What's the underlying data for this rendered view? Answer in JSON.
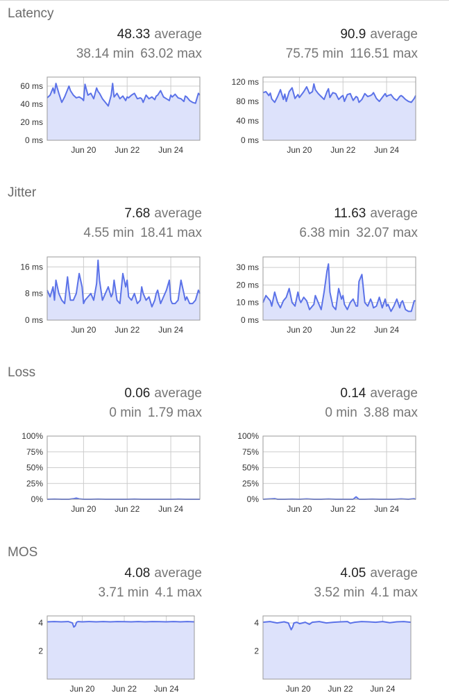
{
  "sections": [
    {
      "title": "Latency",
      "panels": [
        {
          "avg": "48.33",
          "avg_word": "average",
          "min": "38.14 min",
          "max": "63.02 max"
        },
        {
          "avg": "90.9",
          "avg_word": "average",
          "min": "75.75 min",
          "max": "116.51 max"
        }
      ]
    },
    {
      "title": "Jitter",
      "panels": [
        {
          "avg": "7.68",
          "avg_word": "average",
          "min": "4.55 min",
          "max": "18.41 max"
        },
        {
          "avg": "11.63",
          "avg_word": "average",
          "min": "6.38 min",
          "max": "32.07 max"
        }
      ]
    },
    {
      "title": "Loss",
      "panels": [
        {
          "avg": "0.06",
          "avg_word": "average",
          "min": "0 min",
          "max": "1.79 max"
        },
        {
          "avg": "0.14",
          "avg_word": "average",
          "min": "0 min",
          "max": "3.88 max"
        }
      ]
    },
    {
      "title": "MOS",
      "panels": [
        {
          "avg": "4.08",
          "avg_word": "average",
          "min": "3.71 min",
          "max": "4.1 max"
        },
        {
          "avg": "4.05",
          "avg_word": "average",
          "min": "3.52 min",
          "max": "4.1 max"
        }
      ]
    }
  ],
  "chart_data": [
    {
      "type": "area",
      "section": "Latency",
      "panel": "left",
      "x_range": [
        0,
        105
      ],
      "xticks": [
        {
          "x": 25,
          "label": "Jun 20"
        },
        {
          "x": 55,
          "label": "Jun 22"
        },
        {
          "x": 85,
          "label": "Jun 24"
        }
      ],
      "ylim": [
        0,
        70
      ],
      "yticks": [
        {
          "v": 0,
          "label": "0 ms"
        },
        {
          "v": 20,
          "label": "20 ms"
        },
        {
          "v": 40,
          "label": "40 ms"
        },
        {
          "v": 60,
          "label": "60 ms"
        }
      ],
      "color": "#5b72e8",
      "fill": "#dde2fb",
      "x": [
        0,
        2,
        4,
        5,
        6,
        8,
        10,
        12,
        14,
        15,
        16,
        18,
        20,
        22,
        24,
        25,
        26,
        28,
        30,
        32,
        34,
        35,
        36,
        38,
        40,
        42,
        44,
        45,
        46,
        48,
        50,
        52,
        54,
        55,
        56,
        58,
        60,
        62,
        64,
        65,
        66,
        68,
        70,
        72,
        74,
        75,
        76,
        78,
        80,
        82,
        84,
        85,
        86,
        88,
        90,
        92,
        94,
        95,
        96,
        98,
        100,
        102,
        104,
        105
      ],
      "values": [
        47,
        50,
        58,
        52,
        63,
        52,
        42,
        48,
        56,
        60,
        55,
        50,
        47,
        48,
        46,
        44,
        62,
        50,
        52,
        46,
        58,
        54,
        52,
        46,
        42,
        38,
        50,
        63,
        48,
        52,
        46,
        49,
        44,
        48,
        47,
        50,
        52,
        46,
        47,
        46,
        42,
        50,
        46,
        48,
        45,
        49,
        50,
        55,
        48,
        46,
        44,
        50,
        48,
        51,
        47,
        46,
        43,
        49,
        48,
        44,
        42,
        41,
        52,
        50
      ]
    },
    {
      "type": "area",
      "section": "Latency",
      "panel": "right",
      "x_range": [
        0,
        105
      ],
      "xticks": [
        {
          "x": 25,
          "label": "Jun 20"
        },
        {
          "x": 55,
          "label": "Jun 22"
        },
        {
          "x": 85,
          "label": "Jun 24"
        }
      ],
      "ylim": [
        0,
        130
      ],
      "yticks": [
        {
          "v": 0,
          "label": "0 ms"
        },
        {
          "v": 40,
          "label": "40 ms"
        },
        {
          "v": 80,
          "label": "80 ms"
        },
        {
          "v": 120,
          "label": "120 ms"
        }
      ],
      "color": "#5b72e8",
      "fill": "#dde2fb",
      "x": [
        0,
        2,
        4,
        5,
        6,
        8,
        10,
        12,
        14,
        15,
        16,
        18,
        20,
        22,
        24,
        25,
        26,
        28,
        30,
        32,
        34,
        35,
        36,
        38,
        40,
        42,
        44,
        45,
        46,
        48,
        50,
        52,
        54,
        55,
        56,
        58,
        60,
        62,
        64,
        65,
        66,
        68,
        70,
        72,
        74,
        75,
        76,
        78,
        80,
        82,
        84,
        85,
        86,
        88,
        90,
        92,
        94,
        95,
        96,
        98,
        100,
        102,
        104,
        105
      ],
      "values": [
        98,
        100,
        92,
        97,
        85,
        78,
        90,
        104,
        84,
        95,
        80,
        100,
        108,
        86,
        94,
        88,
        92,
        100,
        110,
        96,
        100,
        116,
        104,
        96,
        90,
        84,
        100,
        106,
        88,
        98,
        96,
        84,
        90,
        92,
        80,
        94,
        96,
        82,
        90,
        88,
        78,
        84,
        96,
        90,
        92,
        94,
        98,
        86,
        80,
        88,
        96,
        90,
        92,
        94,
        86,
        82,
        90,
        92,
        90,
        84,
        80,
        78,
        86,
        92
      ]
    },
    {
      "type": "area",
      "section": "Jitter",
      "panel": "left",
      "x_range": [
        0,
        105
      ],
      "xticks": [
        {
          "x": 25,
          "label": "Jun 20"
        },
        {
          "x": 55,
          "label": "Jun 22"
        },
        {
          "x": 85,
          "label": "Jun 24"
        }
      ],
      "ylim": [
        0,
        19
      ],
      "yticks": [
        {
          "v": 0,
          "label": "0 ms"
        },
        {
          "v": 8,
          "label": "8 ms"
        },
        {
          "v": 16,
          "label": "16 ms"
        }
      ],
      "color": "#5b72e8",
      "fill": "#dde2fb",
      "x": [
        0,
        2,
        4,
        5,
        6,
        8,
        10,
        12,
        14,
        15,
        16,
        18,
        20,
        22,
        24,
        25,
        26,
        28,
        30,
        32,
        34,
        35,
        36,
        38,
        40,
        42,
        44,
        45,
        46,
        48,
        50,
        52,
        54,
        55,
        56,
        58,
        60,
        62,
        64,
        65,
        66,
        68,
        70,
        72,
        74,
        75,
        76,
        78,
        80,
        82,
        84,
        85,
        86,
        88,
        90,
        92,
        94,
        95,
        96,
        98,
        100,
        102,
        104,
        105
      ],
      "values": [
        9,
        7,
        10,
        6,
        12,
        8,
        6,
        5,
        13,
        9,
        6,
        6,
        8,
        14,
        10,
        5,
        6,
        7,
        8,
        6,
        11,
        18,
        12,
        6,
        8,
        10,
        7,
        8,
        12,
        6,
        5,
        14,
        10,
        12,
        7,
        6,
        8,
        5,
        6,
        10,
        8,
        6,
        7,
        4,
        6,
        8,
        9,
        5,
        7,
        9,
        12,
        6,
        5,
        5,
        6,
        12,
        8,
        6,
        7,
        5,
        5,
        6,
        9,
        8
      ]
    },
    {
      "type": "area",
      "section": "Jitter",
      "panel": "right",
      "x_range": [
        0,
        105
      ],
      "xticks": [
        {
          "x": 25,
          "label": "Jun 20"
        },
        {
          "x": 55,
          "label": "Jun 22"
        },
        {
          "x": 85,
          "label": "Jun 24"
        }
      ],
      "ylim": [
        0,
        36
      ],
      "yticks": [
        {
          "v": 0,
          "label": "0 ms"
        },
        {
          "v": 10,
          "label": "10 ms"
        },
        {
          "v": 20,
          "label": "20 ms"
        },
        {
          "v": 30,
          "label": "30 ms"
        }
      ],
      "color": "#5b72e8",
      "fill": "#dde2fb",
      "x": [
        0,
        2,
        4,
        5,
        6,
        8,
        10,
        12,
        14,
        15,
        16,
        18,
        20,
        22,
        24,
        25,
        26,
        28,
        30,
        32,
        34,
        35,
        36,
        38,
        40,
        42,
        44,
        45,
        46,
        48,
        50,
        52,
        54,
        55,
        56,
        58,
        60,
        62,
        64,
        65,
        66,
        68,
        70,
        72,
        74,
        75,
        76,
        78,
        80,
        82,
        84,
        85,
        86,
        88,
        90,
        92,
        94,
        95,
        96,
        98,
        100,
        102,
        104,
        105
      ],
      "values": [
        10,
        14,
        12,
        11,
        8,
        16,
        10,
        7,
        11,
        12,
        13,
        18,
        10,
        8,
        16,
        12,
        10,
        13,
        11,
        6,
        8,
        9,
        14,
        10,
        6,
        16,
        28,
        32,
        16,
        8,
        6,
        18,
        12,
        14,
        9,
        6,
        10,
        12,
        8,
        8,
        22,
        26,
        10,
        8,
        12,
        10,
        7,
        8,
        13,
        7,
        12,
        8,
        9,
        5,
        8,
        12,
        7,
        10,
        11,
        6,
        5,
        5,
        11,
        11
      ]
    },
    {
      "type": "area",
      "section": "Loss",
      "panel": "left",
      "x_range": [
        0,
        105
      ],
      "xticks": [
        {
          "x": 25,
          "label": "Jun 20"
        },
        {
          "x": 55,
          "label": "Jun 22"
        },
        {
          "x": 85,
          "label": "Jun 24"
        }
      ],
      "ylim": [
        0,
        100
      ],
      "yticks": [
        {
          "v": 0,
          "label": "0%"
        },
        {
          "v": 25,
          "label": "25%"
        },
        {
          "v": 50,
          "label": "50%"
        },
        {
          "v": 75,
          "label": "75%"
        },
        {
          "v": 100,
          "label": "100%"
        }
      ],
      "color": "#5b72e8",
      "fill": "#dde2fb",
      "x": [
        0,
        5,
        10,
        15,
        18,
        20,
        22,
        25,
        30,
        35,
        40,
        45,
        50,
        55,
        60,
        65,
        70,
        75,
        80,
        85,
        90,
        95,
        100,
        105
      ],
      "values": [
        0,
        0.3,
        0,
        0,
        0.8,
        1.79,
        0.5,
        0,
        0,
        0.2,
        0,
        0,
        0,
        0,
        0.3,
        0,
        0,
        0,
        0,
        0,
        0.2,
        0,
        0,
        0
      ]
    },
    {
      "type": "area",
      "section": "Loss",
      "panel": "right",
      "x_range": [
        0,
        105
      ],
      "xticks": [
        {
          "x": 25,
          "label": "Jun 20"
        },
        {
          "x": 55,
          "label": "Jun 22"
        },
        {
          "x": 85,
          "label": "Jun 24"
        }
      ],
      "ylim": [
        0,
        100
      ],
      "yticks": [
        {
          "v": 0,
          "label": "0%"
        },
        {
          "v": 25,
          "label": "25%"
        },
        {
          "v": 50,
          "label": "50%"
        },
        {
          "v": 75,
          "label": "75%"
        },
        {
          "v": 100,
          "label": "100%"
        }
      ],
      "color": "#5b72e8",
      "fill": "#dde2fb",
      "x": [
        0,
        5,
        8,
        10,
        15,
        20,
        25,
        30,
        35,
        40,
        45,
        50,
        55,
        60,
        62,
        64,
        66,
        70,
        75,
        80,
        85,
        90,
        95,
        100,
        104,
        105
      ],
      "values": [
        0,
        0.5,
        1,
        0,
        0,
        0.3,
        0,
        0.6,
        0,
        0,
        0.4,
        0,
        0,
        0,
        0,
        3.88,
        0,
        0,
        0.3,
        0,
        0,
        0,
        0.5,
        0,
        0.8,
        0
      ]
    },
    {
      "type": "area",
      "section": "MOS",
      "panel": "left",
      "x_range": [
        0,
        105
      ],
      "xticks": [
        {
          "x": 25,
          "label": "Jun 20"
        },
        {
          "x": 55,
          "label": "Jun 22"
        },
        {
          "x": 85,
          "label": "Jun 24"
        }
      ],
      "ylim": [
        0,
        4.5
      ],
      "yticks": [
        {
          "v": 2,
          "label": "2"
        },
        {
          "v": 4,
          "label": "4"
        }
      ],
      "color": "#5b72e8",
      "fill": "#dde2fb",
      "x": [
        0,
        5,
        10,
        15,
        18,
        19,
        20,
        21,
        22,
        25,
        30,
        35,
        40,
        45,
        50,
        55,
        60,
        65,
        70,
        75,
        80,
        85,
        90,
        95,
        100,
        105
      ],
      "values": [
        4.08,
        4.1,
        4.08,
        4.1,
        4.0,
        3.71,
        3.8,
        4.05,
        4.1,
        4.08,
        4.1,
        4.08,
        4.1,
        4.08,
        4.1,
        4.09,
        4.08,
        4.1,
        4.08,
        4.1,
        4.09,
        4.08,
        4.1,
        4.08,
        4.1,
        4.08
      ]
    },
    {
      "type": "area",
      "section": "MOS",
      "panel": "right",
      "x_range": [
        0,
        105
      ],
      "xticks": [
        {
          "x": 25,
          "label": "Jun 20"
        },
        {
          "x": 55,
          "label": "Jun 22"
        },
        {
          "x": 85,
          "label": "Jun 24"
        }
      ],
      "ylim": [
        0,
        4.5
      ],
      "yticks": [
        {
          "v": 2,
          "label": "2"
        },
        {
          "v": 4,
          "label": "4"
        }
      ],
      "color": "#5b72e8",
      "fill": "#dde2fb",
      "x": [
        0,
        5,
        10,
        15,
        18,
        20,
        21,
        22,
        24,
        26,
        30,
        33,
        35,
        40,
        45,
        50,
        55,
        60,
        62,
        65,
        70,
        75,
        80,
        85,
        90,
        95,
        100,
        105
      ],
      "values": [
        4.05,
        4.1,
        4.0,
        4.08,
        4.0,
        3.52,
        3.7,
        4.0,
        4.05,
        3.95,
        4.05,
        3.9,
        4.05,
        4.1,
        4.0,
        4.05,
        4.08,
        4.1,
        3.98,
        4.05,
        4.1,
        4.08,
        4.05,
        4.1,
        4.02,
        4.08,
        4.1,
        4.05
      ]
    }
  ]
}
